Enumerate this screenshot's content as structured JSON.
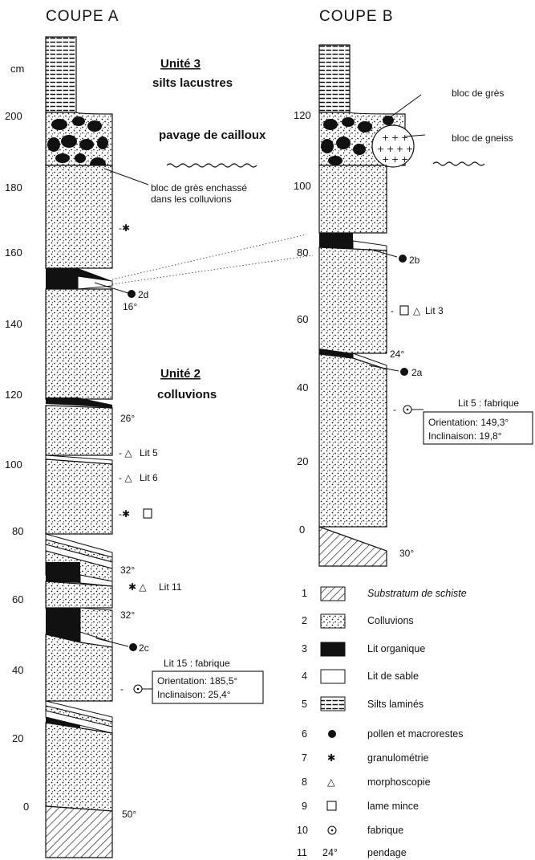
{
  "titles": {
    "coupe_a": "COUPE A",
    "coupe_b": "COUPE B"
  },
  "axis_unit": "cm",
  "axis_a": [
    "200",
    "180",
    "160",
    "140",
    "120",
    "100",
    "80",
    "60",
    "40",
    "20",
    "0"
  ],
  "axis_b": [
    "120",
    "100",
    "80",
    "60",
    "40",
    "20",
    "0"
  ],
  "units": {
    "unite3_title": "Unité 3",
    "unite3_sub": "silts lacustres",
    "unite2_title": "Unité 2",
    "unite2_sub": "colluvions",
    "pavage": "pavage de cailloux"
  },
  "annotations_a": {
    "bloc_gres_1": "bloc de grès enchassé",
    "bloc_gres_2": "dans les colluvions",
    "sample_2d": "2d",
    "sample_2c": "2c",
    "dip_16": "16°",
    "dip_26": "26°",
    "dip_32a": "32°",
    "dip_32b": "32°",
    "dip_50": "50°",
    "lit5": "Lit 5",
    "lit6": "Lit 6",
    "lit11": "Lit 11",
    "fabric_title": "Lit 15 : fabrique",
    "fabric_orientation": "Orientation:  185,5°",
    "fabric_inclinaison": "Inclinaison:  25,4°"
  },
  "annotations_b": {
    "bloc_gres": "bloc de grès",
    "bloc_gneiss": "bloc de gneiss",
    "sample_2b": "2b",
    "sample_2a": "2a",
    "lit3": "Lit 3",
    "dip_24": "24°",
    "dip_30": "30°",
    "fabric_title": "Lit 5 : fabrique",
    "fabric_orientation": "Orientation:  149,3°",
    "fabric_inclinaison": "Inclinaison:  19,8°"
  },
  "legend": [
    {
      "num": "1",
      "symbol": "hatch",
      "label": "Substratum de schiste"
    },
    {
      "num": "2",
      "symbol": "dots",
      "label": "Colluvions"
    },
    {
      "num": "3",
      "symbol": "black",
      "label": "Lit organique"
    },
    {
      "num": "4",
      "symbol": "white",
      "label": "Lit de sable"
    },
    {
      "num": "5",
      "symbol": "lines",
      "label": "Silts laminés"
    },
    {
      "num": "6",
      "symbol": "●",
      "label": "pollen et macrorestes"
    },
    {
      "num": "7",
      "symbol": "✱",
      "label": "granulométrie"
    },
    {
      "num": "8",
      "symbol": "△",
      "label": "morphoscopie"
    },
    {
      "num": "9",
      "symbol": "□",
      "label": "lame mince"
    },
    {
      "num": "10",
      "symbol": "⊙",
      "label": "fabrique"
    },
    {
      "num": "11",
      "symbol": "24°",
      "label": "pendage"
    }
  ]
}
